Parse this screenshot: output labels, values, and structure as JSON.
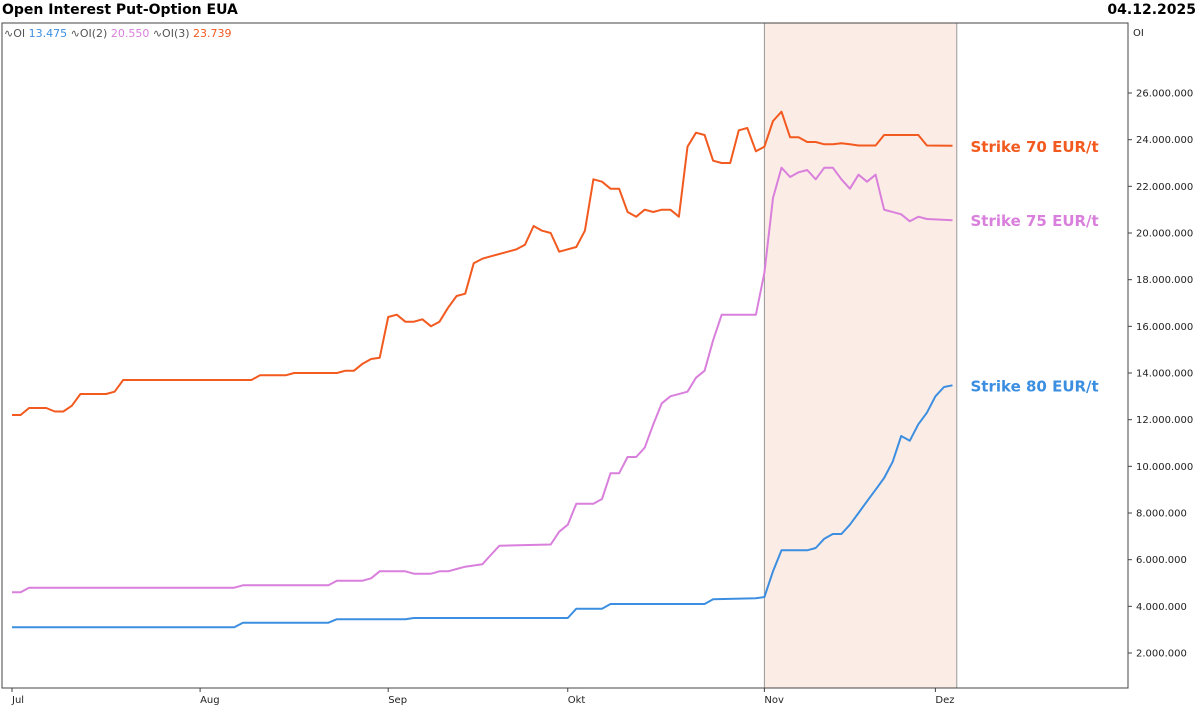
{
  "header": {
    "title": "Open Interest Put-Option EUA",
    "date": "04.12.2025"
  },
  "legend": [
    {
      "symbol": "∿",
      "label": "OI",
      "value": "13.475",
      "color": "#3c8fe0"
    },
    {
      "symbol": "∿",
      "label": "OI(2)",
      "value": "20.550",
      "color": "#d97fdc"
    },
    {
      "symbol": "∿",
      "label": "OI(3)",
      "value": "23.739",
      "color": "#f25a1f"
    }
  ],
  "colors": {
    "shade": "#fcece6",
    "grid": "#999999"
  },
  "chart_data": {
    "type": "line",
    "ylabel": "OI",
    "ylim": [
      500000,
      29000000
    ],
    "yticks": [
      2000000,
      4000000,
      6000000,
      8000000,
      10000000,
      12000000,
      14000000,
      16000000,
      18000000,
      20000000,
      22000000,
      24000000,
      26000000
    ],
    "ytick_labels": [
      "2.000.000",
      "4.000.000",
      "6.000.000",
      "8.000.000",
      "10.000.000",
      "12.000.000",
      "14.000.000",
      "16.000.000",
      "18.000.000",
      "20.000.000",
      "22.000.000",
      "24.000.000",
      "26.000.000"
    ],
    "x_range": [
      0,
      112
    ],
    "month_ticks": [
      {
        "label": "Jul",
        "x": 0
      },
      {
        "label": "Aug",
        "x": 22
      },
      {
        "label": "Sep",
        "x": 44
      },
      {
        "label": "Okt",
        "x": 65
      },
      {
        "label": "Nov",
        "x": 88
      },
      {
        "label": "Dez",
        "x": 108
      }
    ],
    "shaded_range": [
      88,
      110.5
    ],
    "series": [
      {
        "annotation": "Strike 70 EUR/t",
        "color": "#f25a1f",
        "points": [
          [
            0,
            12200000
          ],
          [
            1,
            12200000
          ],
          [
            2,
            12500000
          ],
          [
            4,
            12500000
          ],
          [
            5,
            12350000
          ],
          [
            6,
            12350000
          ],
          [
            7,
            12600000
          ],
          [
            8,
            13100000
          ],
          [
            11,
            13100000
          ],
          [
            12,
            13200000
          ],
          [
            13,
            13700000
          ],
          [
            16,
            13700000
          ],
          [
            28,
            13700000
          ],
          [
            29,
            13900000
          ],
          [
            32,
            13900000
          ],
          [
            33,
            14000000
          ],
          [
            36,
            14000000
          ],
          [
            38,
            14000000
          ],
          [
            39,
            14100000
          ],
          [
            40,
            14100000
          ],
          [
            41,
            14400000
          ],
          [
            42,
            14600000
          ],
          [
            43,
            14650000
          ],
          [
            44,
            16400000
          ],
          [
            45,
            16500000
          ],
          [
            46,
            16200000
          ],
          [
            47,
            16200000
          ],
          [
            48,
            16300000
          ],
          [
            49,
            16000000
          ],
          [
            50,
            16200000
          ],
          [
            51,
            16800000
          ],
          [
            52,
            17300000
          ],
          [
            53,
            17400000
          ],
          [
            54,
            18700000
          ],
          [
            55,
            18900000
          ],
          [
            56,
            19000000
          ],
          [
            58,
            19200000
          ],
          [
            59,
            19300000
          ],
          [
            60,
            19500000
          ],
          [
            61,
            20300000
          ],
          [
            62,
            20100000
          ],
          [
            63,
            20000000
          ],
          [
            64,
            19200000
          ],
          [
            65,
            19300000
          ],
          [
            66,
            19400000
          ],
          [
            67,
            20100000
          ],
          [
            68,
            22300000
          ],
          [
            69,
            22200000
          ],
          [
            70,
            21900000
          ],
          [
            71,
            21900000
          ],
          [
            72,
            20900000
          ],
          [
            73,
            20700000
          ],
          [
            74,
            21000000
          ],
          [
            75,
            20900000
          ],
          [
            76,
            21000000
          ],
          [
            77,
            21000000
          ],
          [
            78,
            20700000
          ],
          [
            79,
            23700000
          ],
          [
            80,
            24300000
          ],
          [
            81,
            24200000
          ],
          [
            82,
            23100000
          ],
          [
            83,
            23000000
          ],
          [
            84,
            23000000
          ],
          [
            85,
            24400000
          ],
          [
            86,
            24500000
          ],
          [
            87,
            23500000
          ],
          [
            88,
            23700000
          ],
          [
            89,
            24800000
          ],
          [
            90,
            25200000
          ],
          [
            91,
            24100000
          ],
          [
            92,
            24100000
          ],
          [
            93,
            23900000
          ],
          [
            94,
            23900000
          ],
          [
            95,
            23800000
          ],
          [
            96,
            23800000
          ],
          [
            97,
            23850000
          ],
          [
            98,
            23800000
          ],
          [
            99,
            23750000
          ],
          [
            101,
            23750000
          ],
          [
            102,
            24200000
          ],
          [
            106,
            24200000
          ],
          [
            107,
            23750000
          ],
          [
            110,
            23739000
          ]
        ]
      },
      {
        "annotation": "Strike 75 EUR/t",
        "color": "#d97fdc",
        "points": [
          [
            0,
            4600000
          ],
          [
            1,
            4600000
          ],
          [
            2,
            4800000
          ],
          [
            26,
            4800000
          ],
          [
            27,
            4900000
          ],
          [
            37,
            4900000
          ],
          [
            38,
            5100000
          ],
          [
            41,
            5100000
          ],
          [
            42,
            5200000
          ],
          [
            43,
            5500000
          ],
          [
            46,
            5500000
          ],
          [
            47,
            5400000
          ],
          [
            49,
            5400000
          ],
          [
            50,
            5500000
          ],
          [
            51,
            5500000
          ],
          [
            52,
            5600000
          ],
          [
            53,
            5700000
          ],
          [
            55,
            5800000
          ],
          [
            56,
            6200000
          ],
          [
            57,
            6600000
          ],
          [
            63,
            6650000
          ],
          [
            64,
            7200000
          ],
          [
            65,
            7500000
          ],
          [
            66,
            8400000
          ],
          [
            68,
            8400000
          ],
          [
            69,
            8600000
          ],
          [
            70,
            9700000
          ],
          [
            71,
            9700000
          ],
          [
            72,
            10400000
          ],
          [
            73,
            10400000
          ],
          [
            74,
            10800000
          ],
          [
            75,
            11800000
          ],
          [
            76,
            12700000
          ],
          [
            77,
            13000000
          ],
          [
            79,
            13200000
          ],
          [
            80,
            13800000
          ],
          [
            81,
            14100000
          ],
          [
            82,
            15400000
          ],
          [
            83,
            16500000
          ],
          [
            85,
            16500000
          ],
          [
            87,
            16500000
          ],
          [
            88,
            18300000
          ],
          [
            89,
            21500000
          ],
          [
            90,
            22800000
          ],
          [
            91,
            22400000
          ],
          [
            92,
            22600000
          ],
          [
            93,
            22700000
          ],
          [
            94,
            22300000
          ],
          [
            95,
            22800000
          ],
          [
            96,
            22800000
          ],
          [
            97,
            22300000
          ],
          [
            98,
            21900000
          ],
          [
            99,
            22500000
          ],
          [
            100,
            22200000
          ],
          [
            101,
            22500000
          ],
          [
            102,
            21000000
          ],
          [
            104,
            20800000
          ],
          [
            105,
            20500000
          ],
          [
            106,
            20700000
          ],
          [
            107,
            20600000
          ],
          [
            110,
            20550000
          ]
        ]
      },
      {
        "annotation": "Strike 80 EUR/t",
        "color": "#3c8fe0",
        "points": [
          [
            0,
            3100000
          ],
          [
            26,
            3100000
          ],
          [
            27,
            3300000
          ],
          [
            37,
            3300000
          ],
          [
            38,
            3450000
          ],
          [
            46,
            3450000
          ],
          [
            47,
            3500000
          ],
          [
            65,
            3500000
          ],
          [
            66,
            3900000
          ],
          [
            69,
            3900000
          ],
          [
            70,
            4100000
          ],
          [
            81,
            4100000
          ],
          [
            82,
            4300000
          ],
          [
            87,
            4350000
          ],
          [
            88,
            4400000
          ],
          [
            89,
            5500000
          ],
          [
            90,
            6400000
          ],
          [
            93,
            6400000
          ],
          [
            94,
            6500000
          ],
          [
            95,
            6900000
          ],
          [
            96,
            7100000
          ],
          [
            97,
            7100000
          ],
          [
            98,
            7500000
          ],
          [
            99,
            8000000
          ],
          [
            100,
            8500000
          ],
          [
            101,
            9000000
          ],
          [
            102,
            9500000
          ],
          [
            103,
            10200000
          ],
          [
            104,
            11300000
          ],
          [
            105,
            11100000
          ],
          [
            106,
            11800000
          ],
          [
            107,
            12300000
          ],
          [
            108,
            13000000
          ],
          [
            109,
            13400000
          ],
          [
            110,
            13475000
          ]
        ]
      }
    ]
  }
}
